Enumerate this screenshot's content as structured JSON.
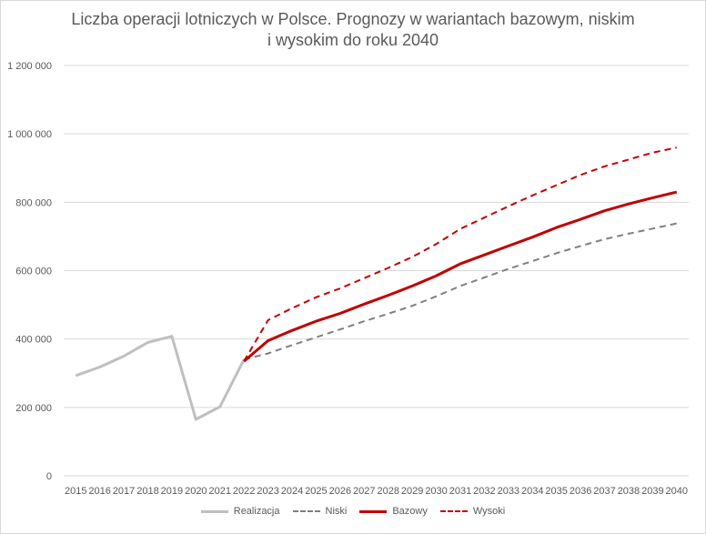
{
  "title_line1": "Liczba operacji lotniczych w Polsce. Prognozy w wariantach bazowym, niskim",
  "title_line2": "i wysokim do roku 2040",
  "chart_data": {
    "type": "line",
    "title": "Liczba operacji lotniczych w Polsce. Prognozy w wariantach bazowym, niskim i wysokim do roku 2040",
    "x": [
      2015,
      2016,
      2017,
      2018,
      2019,
      2020,
      2021,
      2022,
      2023,
      2024,
      2025,
      2026,
      2027,
      2028,
      2029,
      2030,
      2031,
      2032,
      2033,
      2034,
      2035,
      2036,
      2037,
      2038,
      2039,
      2040
    ],
    "ylim": [
      0,
      1200000
    ],
    "yticks": [
      0,
      200000,
      400000,
      600000,
      800000,
      1000000,
      1200000
    ],
    "ytick_labels": [
      "0",
      "200 000",
      "400 000",
      "600 000",
      "800 000",
      "1 000 000",
      "1 200 000"
    ],
    "grid": true,
    "legend_position": "bottom",
    "series": [
      {
        "name": "Realizacja",
        "color": "#bfbfbf",
        "style": "solid",
        "values": [
          293000,
          318000,
          350000,
          390000,
          408000,
          165000,
          202000,
          340000,
          null,
          null,
          null,
          null,
          null,
          null,
          null,
          null,
          null,
          null,
          null,
          null,
          null,
          null,
          null,
          null,
          null,
          null
        ]
      },
      {
        "name": "Niski",
        "color": "#7f7f7f",
        "style": "dashed",
        "values": [
          null,
          null,
          null,
          null,
          null,
          null,
          null,
          340000,
          358000,
          382000,
          405000,
          428000,
          452000,
          474000,
          497000,
          525000,
          555000,
          580000,
          605000,
          628000,
          651000,
          672000,
          692000,
          708000,
          723000,
          738000
        ]
      },
      {
        "name": "Bazowy",
        "color": "#c00000",
        "style": "solid",
        "values": [
          null,
          null,
          null,
          null,
          null,
          null,
          null,
          335000,
          395000,
          425000,
          452000,
          475000,
          502000,
          528000,
          555000,
          585000,
          620000,
          646000,
          672000,
          698000,
          726000,
          750000,
          775000,
          795000,
          813000,
          830000
        ]
      },
      {
        "name": "Wysoki",
        "color": "#c00000",
        "style": "dashed",
        "values": [
          null,
          null,
          null,
          null,
          null,
          null,
          null,
          335000,
          455000,
          490000,
          522000,
          548000,
          578000,
          608000,
          640000,
          678000,
          722000,
          755000,
          788000,
          820000,
          850000,
          880000,
          905000,
          925000,
          945000,
          960000
        ]
      }
    ]
  }
}
